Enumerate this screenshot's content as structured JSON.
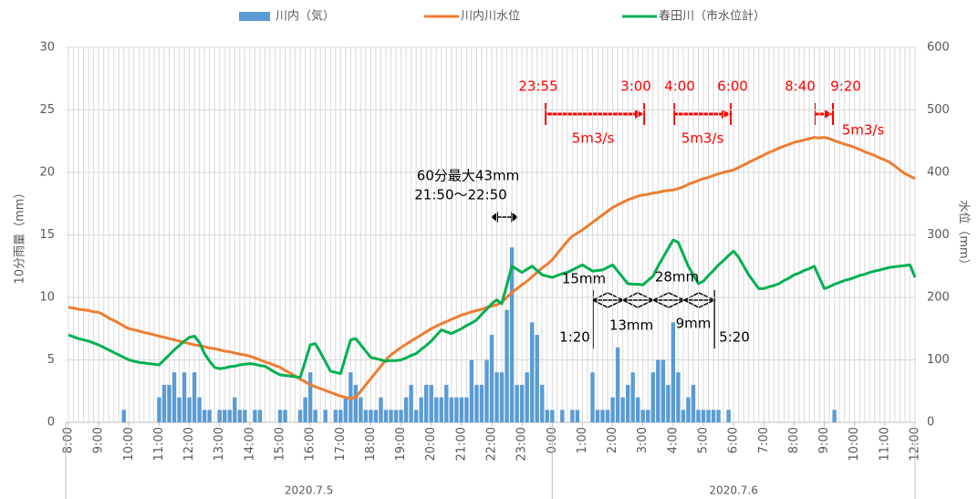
{
  "chart_data": {
    "type": "bar",
    "y_label": "10分雨量（mm）",
    "y2_label": "水位（mm）",
    "ylim": [
      0,
      30
    ],
    "yticks": [
      0,
      5,
      10,
      15,
      20,
      25,
      30
    ],
    "y2lim": [
      0,
      600
    ],
    "y2ticks": [
      0,
      100,
      200,
      300,
      400,
      500,
      600
    ],
    "grid": true,
    "legend": "top",
    "categories": [
      "8:00",
      null,
      null,
      null,
      null,
      null,
      "9:00",
      null,
      null,
      null,
      null,
      null,
      "10:00",
      null,
      null,
      null,
      null,
      null,
      "11:00",
      null,
      null,
      null,
      null,
      null,
      "12:00",
      null,
      null,
      null,
      null,
      null,
      "13:00",
      null,
      null,
      null,
      null,
      null,
      "14:00",
      null,
      null,
      null,
      null,
      null,
      "15:00",
      null,
      null,
      null,
      null,
      null,
      "16:00",
      null,
      null,
      null,
      null,
      null,
      "17:00",
      null,
      null,
      null,
      null,
      null,
      "18:00",
      null,
      null,
      null,
      null,
      null,
      "19:00",
      null,
      null,
      null,
      null,
      null,
      "20:00",
      null,
      null,
      null,
      null,
      null,
      "21:00",
      null,
      null,
      null,
      null,
      null,
      "22:00",
      null,
      null,
      null,
      null,
      null,
      "23:00",
      null,
      null,
      null,
      null,
      null,
      "0:00",
      null,
      null,
      null,
      null,
      null,
      "1:00",
      null,
      null,
      null,
      null,
      null,
      "2:00",
      null,
      null,
      null,
      null,
      null,
      "3:00",
      null,
      null,
      null,
      null,
      null,
      "4:00",
      null,
      null,
      null,
      null,
      null,
      "5:00",
      null,
      null,
      null,
      null,
      null,
      "6:00",
      null,
      null,
      null,
      null,
      null,
      "7:00",
      null,
      null,
      null,
      null,
      null,
      "8:00",
      null,
      null,
      null,
      null,
      null,
      "9:00",
      null,
      null,
      null,
      null,
      null,
      "10:00",
      null,
      null,
      null,
      null,
      null,
      "11:00",
      null,
      null,
      null,
      null,
      null,
      "12:00"
    ],
    "groups": [
      {
        "label": "2020.7.5"
      },
      {
        "label": "2020.7.6"
      }
    ],
    "series": [
      {
        "name": "川内（気）",
        "type": "bar",
        "axis": "y",
        "color": "#5b9bd5",
        "values": [
          0,
          0,
          0,
          0,
          0,
          0,
          0,
          0,
          0,
          0,
          0,
          1,
          0,
          0,
          0,
          0,
          0,
          0,
          2,
          3,
          3,
          4,
          2,
          4,
          2,
          4,
          2,
          1,
          1,
          0,
          1,
          1,
          1,
          2,
          1,
          1,
          0,
          1,
          1,
          0,
          0,
          0,
          1,
          1,
          0,
          0,
          1,
          2,
          4,
          1,
          0,
          1,
          0,
          1,
          1,
          2,
          4,
          3,
          2,
          1,
          1,
          1,
          2,
          1,
          1,
          1,
          1,
          2,
          3,
          1,
          2,
          3,
          3,
          2,
          2,
          3,
          2,
          2,
          2,
          2,
          5,
          3,
          3,
          5,
          7,
          4,
          4,
          9,
          14,
          3,
          3,
          4,
          8,
          7,
          3,
          1,
          1,
          0,
          1,
          0,
          1,
          1,
          0,
          0,
          4,
          1,
          1,
          1,
          2,
          6,
          2,
          3,
          4,
          2,
          1,
          1,
          4,
          5,
          5,
          3,
          8,
          4,
          1,
          2,
          3,
          1,
          1,
          1,
          1,
          1,
          0,
          1,
          0,
          0,
          0,
          0,
          0,
          0,
          0,
          0,
          0,
          0,
          0,
          0,
          0,
          0,
          0,
          0,
          0,
          0,
          0,
          0,
          1,
          0,
          0,
          0,
          0,
          0,
          0,
          0,
          0,
          0,
          0,
          0,
          0,
          0,
          0,
          0,
          0
        ]
      },
      {
        "name": "川内川水位",
        "type": "line",
        "axis": "y2",
        "color": "#ed7d31",
        "values": [
          184,
          183,
          181,
          180,
          179,
          177,
          176,
          172,
          167,
          163,
          159,
          154,
          150,
          148,
          146,
          144,
          142,
          140,
          138,
          136,
          134,
          132,
          130,
          128,
          126,
          124,
          123,
          121,
          119,
          118,
          116,
          114,
          113,
          111,
          109,
          108,
          106,
          103,
          100,
          97,
          94,
          91,
          88,
          83,
          79,
          74,
          69,
          65,
          60,
          57,
          54,
          51,
          48,
          45,
          42,
          40,
          38,
          40,
          50,
          60,
          70,
          80,
          90,
          100,
          108,
          114,
          120,
          125,
          130,
          135,
          140,
          145,
          150,
          154,
          158,
          161,
          165,
          168,
          172,
          174,
          177,
          179,
          181,
          184,
          186,
          188,
          192,
          200,
          208,
          214,
          220,
          226,
          233,
          240,
          247,
          253,
          260,
          270,
          280,
          290,
          298,
          303,
          308,
          314,
          320,
          326,
          332,
          338,
          344,
          348,
          352,
          356,
          359,
          362,
          364,
          365,
          367,
          368,
          370,
          371,
          372,
          374,
          377,
          381,
          384,
          387,
          390,
          392,
          395,
          398,
          400,
          402,
          404,
          408,
          412,
          416,
          420,
          424,
          428,
          432,
          435,
          439,
          442,
          445,
          448,
          450,
          452,
          454,
          456,
          455,
          456,
          454,
          451,
          448,
          445,
          443,
          440,
          437,
          433,
          430,
          427,
          423,
          420,
          416,
          410,
          404,
          398,
          394,
          390
        ]
      },
      {
        "name": "春田川（市水位計）",
        "type": "line",
        "axis": "y2",
        "color": "#00b050",
        "values": [
          140,
          137,
          134,
          132,
          130,
          127,
          124,
          120,
          116,
          112,
          108,
          104,
          100,
          98,
          96,
          95,
          94,
          93,
          92,
          100,
          108,
          116,
          123,
          130,
          136,
          138,
          128,
          110,
          98,
          88,
          86,
          87,
          89,
          90,
          92,
          93,
          94,
          93,
          91,
          90,
          85,
          80,
          76,
          75,
          74,
          73,
          72,
          98,
          124,
          126,
          112,
          97,
          82,
          80,
          78,
          105,
          132,
          134,
          124,
          114,
          104,
          102,
          100,
          98,
          99,
          99,
          100,
          103,
          107,
          110,
          117,
          123,
          130,
          139,
          148,
          145,
          142,
          146,
          150,
          155,
          159,
          164,
          173,
          181,
          190,
          196,
          190,
          220,
          250,
          245,
          240,
          245,
          250,
          243,
          236,
          234,
          232,
          235,
          238,
          240,
          244,
          248,
          252,
          247,
          242,
          243,
          244,
          248,
          252,
          242,
          232,
          222,
          221,
          221,
          220,
          227,
          234,
          250,
          264,
          278,
          292,
          288,
          269,
          250,
          236,
          222,
          226,
          235,
          243,
          252,
          259,
          267,
          274,
          264,
          250,
          236,
          225,
          214,
          214,
          217,
          219,
          222,
          227,
          231,
          236,
          239,
          243,
          246,
          250,
          232,
          214,
          217,
          221,
          224,
          227,
          229,
          232,
          235,
          237,
          240,
          242,
          244,
          246,
          248,
          249,
          250,
          251,
          252,
          232
        ]
      }
    ],
    "annotations": [
      {
        "text": "23:55",
        "color": "#ff0000"
      },
      {
        "text": "3:00",
        "color": "#ff0000"
      },
      {
        "text": "4:00",
        "color": "#ff0000"
      },
      {
        "text": "6:00",
        "color": "#ff0000"
      },
      {
        "text": "8:40",
        "color": "#ff0000"
      },
      {
        "text": "9:20",
        "color": "#ff0000"
      },
      {
        "text": "5m3/s",
        "color": "#ff0000"
      },
      {
        "text": "5m3/s",
        "color": "#ff0000"
      },
      {
        "text": "5m3/s",
        "color": "#ff0000"
      },
      {
        "text": "60分最大43mm",
        "color": "#000000"
      },
      {
        "text": "21:50〜22:50",
        "color": "#000000"
      },
      {
        "text": "15mm",
        "color": "#000000"
      },
      {
        "text": "28mm",
        "color": "#000000"
      },
      {
        "text": "13mm",
        "color": "#000000"
      },
      {
        "text": "9mm",
        "color": "#000000"
      },
      {
        "text": "1:20",
        "color": "#000000"
      },
      {
        "text": "5:20",
        "color": "#000000"
      }
    ]
  }
}
